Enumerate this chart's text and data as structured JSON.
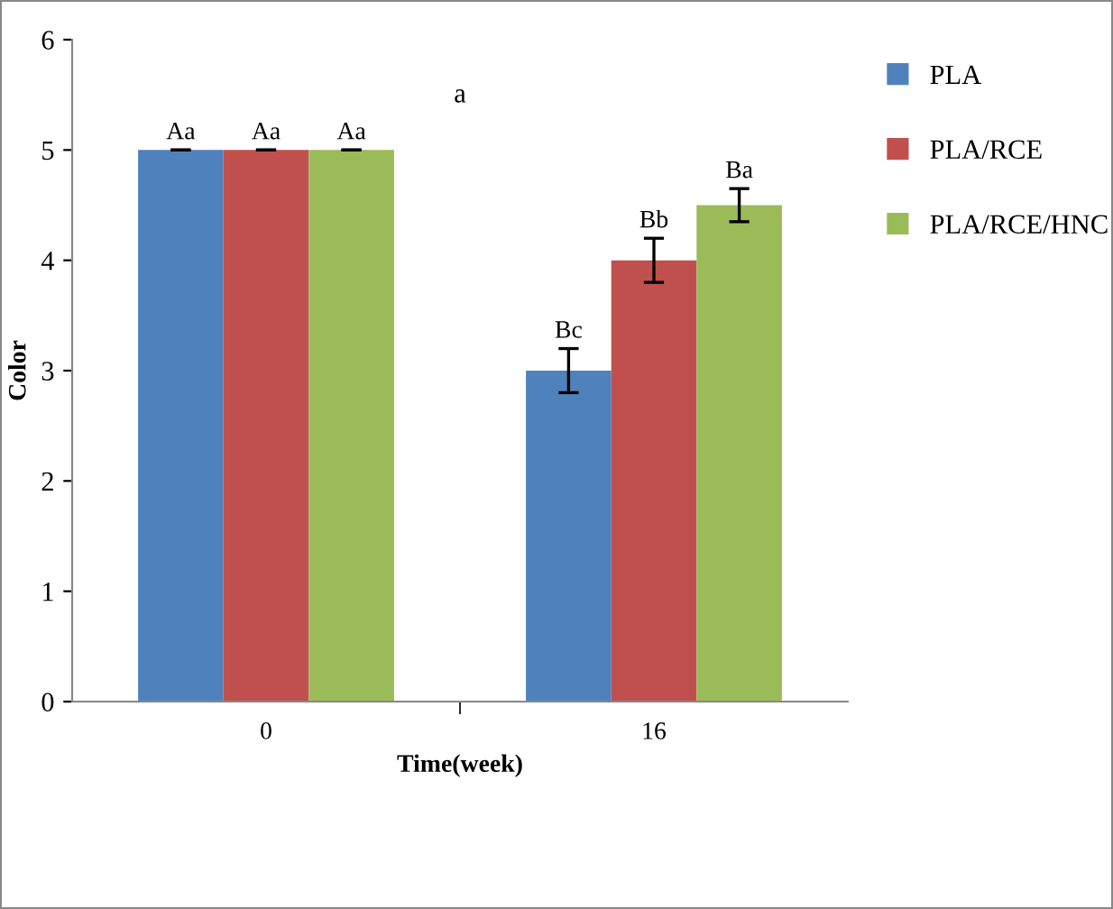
{
  "chart_data": {
    "type": "bar",
    "title": "a",
    "xlabel": "Time(week)",
    "ylabel": "Color",
    "categories": [
      "0",
      "16"
    ],
    "series": [
      {
        "name": "PLA",
        "color": "#4f81bd",
        "values": [
          5,
          3
        ],
        "errors": [
          0,
          0.2
        ],
        "value_labels": [
          "Aa",
          "Bc"
        ]
      },
      {
        "name": "PLA/RCE",
        "color": "#c0504d",
        "values": [
          5,
          4
        ],
        "errors": [
          0,
          0.2
        ],
        "value_labels": [
          "Aa",
          "Bb"
        ]
      },
      {
        "name": "PLA/RCE/HNC",
        "color": "#9bbb59",
        "values": [
          5,
          4.5
        ],
        "errors": [
          0,
          0.15
        ],
        "value_labels": [
          "Aa",
          "Ba"
        ]
      }
    ],
    "ylim": [
      0,
      6
    ],
    "yticks": [
      0,
      1,
      2,
      3,
      4,
      5,
      6
    ],
    "grid": false,
    "legend": "right"
  }
}
